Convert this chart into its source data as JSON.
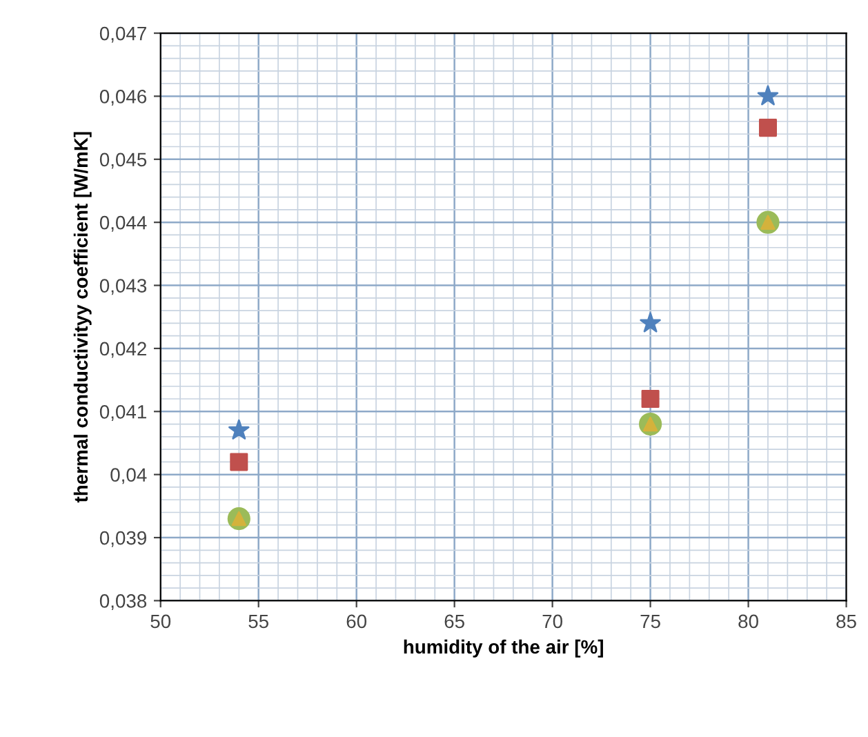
{
  "chart_data": {
    "type": "scatter",
    "xlabel": "humidity of the air [%]",
    "ylabel": "thermal conductivityy coefficient [W/mK]",
    "x": [
      54,
      75,
      81
    ],
    "series": [
      {
        "color": "#4f81bd",
        "values": [
          0.0407,
          0.0424,
          0.046
        ],
        "marker": "star"
      },
      {
        "color": "#c0504d",
        "values": [
          0.0402,
          0.0412,
          0.0455
        ],
        "marker": "square"
      },
      {
        "color": "#9bbb59",
        "values": [
          0.0393,
          0.0408,
          0.044
        ],
        "marker": "circle"
      },
      {
        "color": "#d4b23c",
        "values": [
          0.0393,
          0.0408,
          0.044
        ],
        "marker": "triangle"
      }
    ],
    "xlim": [
      50,
      85
    ],
    "xticks": [
      50,
      55,
      60,
      65,
      70,
      75,
      80,
      85
    ],
    "ylim": [
      0.038,
      0.047
    ],
    "yticks": [
      {
        "value": 0.038,
        "label": "0,038"
      },
      {
        "value": 0.039,
        "label": "0,039"
      },
      {
        "value": 0.04,
        "label": "0,04"
      },
      {
        "value": 0.041,
        "label": "0,041"
      },
      {
        "value": 0.042,
        "label": "0,042"
      },
      {
        "value": 0.043,
        "label": "0,043"
      },
      {
        "value": 0.044,
        "label": "0,044"
      },
      {
        "value": 0.045,
        "label": "0,045"
      },
      {
        "value": 0.046,
        "label": "0,046"
      },
      {
        "value": 0.047,
        "label": "0,047"
      }
    ],
    "grid": true,
    "legend": false
  }
}
